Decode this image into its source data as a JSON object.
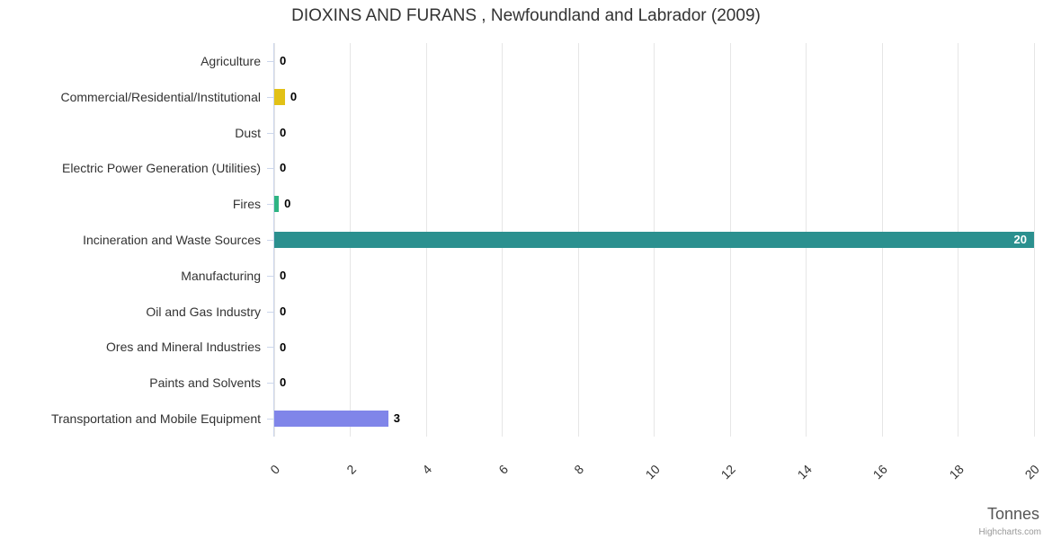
{
  "chart_data": {
    "type": "bar",
    "orientation": "horizontal",
    "title": "DIOXINS AND FURANS , Newfoundland and Labrador (2009)",
    "categories": [
      "Agriculture",
      "Commercial/Residential/Institutional",
      "Dust",
      "Electric Power Generation (Utilities)",
      "Fires",
      "Incineration and Waste Sources",
      "Manufacturing",
      "Oil and Gas Industry",
      "Ores and Mineral Industries",
      "Paints and Solvents",
      "Transportation and Mobile Equipment"
    ],
    "values": [
      0,
      0.28,
      0,
      0,
      0.12,
      20,
      0,
      0,
      0,
      0,
      3
    ],
    "value_labels": [
      "0",
      "0",
      "0",
      "0",
      "0",
      "20",
      "0",
      "0",
      "0",
      "0",
      "3"
    ],
    "bar_colors": [
      "#7cb5ec",
      "#e2c116",
      "#7cb5ec",
      "#7cb5ec",
      "#2eb483",
      "#2b908f",
      "#7cb5ec",
      "#7cb5ec",
      "#7cb5ec",
      "#7cb5ec",
      "#8085e9"
    ],
    "xlabel": "Tonnes",
    "xlim": [
      0,
      20
    ],
    "xticks": [
      0,
      2,
      4,
      6,
      8,
      10,
      12,
      14,
      16,
      18,
      20
    ],
    "grid": true,
    "legend": "none",
    "gridline_color": "#e6e6e6",
    "axis_color": "#ccd6eb",
    "credit": "Highcharts.com"
  }
}
